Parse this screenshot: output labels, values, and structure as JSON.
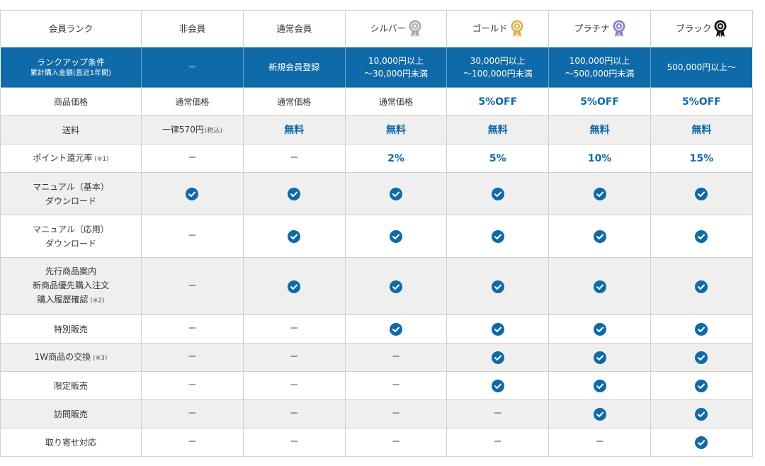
{
  "header": {
    "rank_label": "会員ランク",
    "columns": [
      {
        "label": "非会員",
        "medal": null
      },
      {
        "label": "通常会員",
        "medal": null
      },
      {
        "label": "シルバー",
        "medal": "silver-medal-icon",
        "color": "#a9a9a9"
      },
      {
        "label": "ゴールド",
        "medal": "gold-medal-icon",
        "color": "#d9b24a"
      },
      {
        "label": "プラチナ",
        "medal": "platinum-medal-icon",
        "color": "#8b7fd0"
      },
      {
        "label": "ブラック",
        "medal": "black-medal-icon",
        "color": "#111111"
      }
    ]
  },
  "rank_up": {
    "label": "ランクアップ条件",
    "sub": "累計購入金額(直近1年間)",
    "cells": [
      [
        "－"
      ],
      [
        "新規会員登録"
      ],
      [
        "10,000円以上",
        "～30,000円未満"
      ],
      [
        "30,000円以上",
        "～100,000円未満"
      ],
      [
        "100,000円以上",
        "～500,000円未満"
      ],
      [
        "500,000円以上～"
      ]
    ]
  },
  "rows": [
    {
      "label_lines": [
        "商品価格"
      ],
      "note": "",
      "cells": [
        {
          "t": "text",
          "v": "通常価格"
        },
        {
          "t": "text",
          "v": "通常価格"
        },
        {
          "t": "text",
          "v": "通常価格"
        },
        {
          "t": "hl",
          "v": "5%OFF"
        },
        {
          "t": "hl",
          "v": "5%OFF"
        },
        {
          "t": "hl",
          "v": "5%OFF"
        }
      ]
    },
    {
      "label_lines": [
        "送料"
      ],
      "note": "",
      "cells": [
        {
          "t": "text",
          "v": "一律570円",
          "note": "(税込)"
        },
        {
          "t": "hl",
          "v": "無料"
        },
        {
          "t": "hl",
          "v": "無料"
        },
        {
          "t": "hl",
          "v": "無料"
        },
        {
          "t": "hl",
          "v": "無料"
        },
        {
          "t": "hl",
          "v": "無料"
        }
      ]
    },
    {
      "label_lines": [
        "ポイント還元率"
      ],
      "note": "(※1)",
      "cells": [
        {
          "t": "dash",
          "v": "－"
        },
        {
          "t": "dash",
          "v": "－"
        },
        {
          "t": "hl",
          "v": "2%"
        },
        {
          "t": "hl",
          "v": "5%"
        },
        {
          "t": "hl",
          "v": "10%"
        },
        {
          "t": "hl",
          "v": "15%"
        }
      ]
    },
    {
      "label_lines": [
        "マニュアル（基本）",
        "ダウンロード"
      ],
      "note": "",
      "cells": [
        {
          "t": "check"
        },
        {
          "t": "check"
        },
        {
          "t": "check"
        },
        {
          "t": "check"
        },
        {
          "t": "check"
        },
        {
          "t": "check"
        }
      ]
    },
    {
      "label_lines": [
        "マニュアル（応用）",
        "ダウンロード"
      ],
      "note": "",
      "cells": [
        {
          "t": "dash",
          "v": "－"
        },
        {
          "t": "check"
        },
        {
          "t": "check"
        },
        {
          "t": "check"
        },
        {
          "t": "check"
        },
        {
          "t": "check"
        }
      ]
    },
    {
      "label_lines": [
        "先行商品案内",
        "新商品優先購入注文",
        "購入履歴確認"
      ],
      "note": "(※2)",
      "cells": [
        {
          "t": "dash",
          "v": "－"
        },
        {
          "t": "check"
        },
        {
          "t": "check"
        },
        {
          "t": "check"
        },
        {
          "t": "check"
        },
        {
          "t": "check"
        }
      ]
    },
    {
      "label_lines": [
        "特別販売"
      ],
      "note": "",
      "cells": [
        {
          "t": "dash",
          "v": "－"
        },
        {
          "t": "dash",
          "v": "－"
        },
        {
          "t": "check"
        },
        {
          "t": "check"
        },
        {
          "t": "check"
        },
        {
          "t": "check"
        }
      ]
    },
    {
      "label_lines": [
        "1W商品の交換"
      ],
      "note": "(※3)",
      "cells": [
        {
          "t": "dash",
          "v": "－"
        },
        {
          "t": "dash",
          "v": "－"
        },
        {
          "t": "dash",
          "v": "－"
        },
        {
          "t": "check"
        },
        {
          "t": "check"
        },
        {
          "t": "check"
        }
      ]
    },
    {
      "label_lines": [
        "限定販売"
      ],
      "note": "",
      "cells": [
        {
          "t": "dash",
          "v": "－"
        },
        {
          "t": "dash",
          "v": "－"
        },
        {
          "t": "dash",
          "v": "－"
        },
        {
          "t": "check"
        },
        {
          "t": "check"
        },
        {
          "t": "check"
        }
      ]
    },
    {
      "label_lines": [
        "訪問販売"
      ],
      "note": "",
      "cells": [
        {
          "t": "dash",
          "v": "－"
        },
        {
          "t": "dash",
          "v": "－"
        },
        {
          "t": "dash",
          "v": "－"
        },
        {
          "t": "dash",
          "v": "－"
        },
        {
          "t": "check"
        },
        {
          "t": "check"
        }
      ]
    },
    {
      "label_lines": [
        "取り寄せ対応"
      ],
      "note": "",
      "cells": [
        {
          "t": "dash",
          "v": "－"
        },
        {
          "t": "dash",
          "v": "－"
        },
        {
          "t": "dash",
          "v": "－"
        },
        {
          "t": "dash",
          "v": "－"
        },
        {
          "t": "dash",
          "v": "－"
        },
        {
          "t": "check"
        }
      ]
    }
  ],
  "colors": {
    "accent": "#0e6aa8",
    "row_alt": "#efefef",
    "border": "#cfcfcf"
  }
}
